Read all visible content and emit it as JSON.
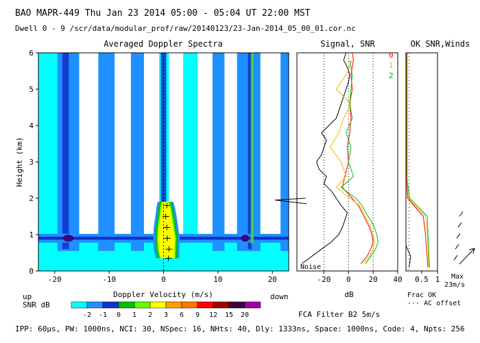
{
  "header": {
    "line1": "BAO  MAPR-449  Thu Jan 23 2014 05:00 - 05:04 UT 22:00 MST",
    "line2": "Dwell  0 -  9   /scr/data/modular_prof/raw/20140123/23-Jan-2014_05_00_01.cor.nc"
  },
  "footer": {
    "params": "IPP:  60µs,  PW: 1000ns,  NCI:  30,  NSpec: 16, NHts: 40,  Dly: 1333ns,  Space: 1000ns,  Code: 4,  Npts: 256"
  },
  "colors": {
    "scale": [
      "#00ffff",
      "#2a8cff",
      "#1030d8",
      "#00c000",
      "#60ff00",
      "#ffff00",
      "#ffa000",
      "#ff7800",
      "#ff0000",
      "#a00000",
      "#400040",
      "#a000a0"
    ],
    "spectra_bg": "#00ffff",
    "spectra_white": "#ffffff",
    "spectra_band": "#1e90ff",
    "spectra_dark": "#1030c8",
    "signal_line": "#000000",
    "snr0": "#ff0000",
    "snr1": "#ffb000",
    "snr2": "#00c000"
  },
  "chart_data": [
    {
      "type": "heatmap",
      "title": "Averaged Doppler Spectra",
      "xlabel": "Doppler Velocity (m/s)",
      "ylabel": "Height (km)",
      "xlim": [
        -23,
        23
      ],
      "ylim": [
        0,
        6
      ],
      "xticks": [
        -20,
        -10,
        0,
        10,
        20
      ],
      "yticks": [
        0,
        1,
        2,
        3,
        4,
        5,
        6
      ],
      "left_note": "up",
      "right_note": "down",
      "colorbar_label": "SNR dB",
      "colorbar_ticks": [
        "-2",
        "-1",
        "0",
        "1",
        "2",
        "3",
        "6",
        "9",
        "12",
        "15",
        "20"
      ],
      "white_bands_x": [
        [
          -15.5,
          -12.0
        ],
        [
          -9.0,
          -6.0
        ],
        [
          -3.6,
          -0.8
        ],
        [
          1.0,
          3.6
        ],
        [
          6.3,
          9.0
        ],
        [
          11.2,
          13.5
        ],
        [
          17.8,
          21.5
        ]
      ],
      "blue_bands_x": [
        [
          -19.5,
          -15.5
        ],
        [
          -12.0,
          -9.0
        ],
        [
          -6.0,
          -3.6
        ],
        [
          9.0,
          11.2
        ],
        [
          13.5,
          17.8
        ],
        [
          21.5,
          23.0
        ]
      ],
      "dark_bands_x": [
        [
          -18.6,
          -17.4
        ],
        [
          15.5,
          16.2
        ],
        [
          -0.5,
          0.5
        ]
      ],
      "ground_clutter": {
        "y": 0.9,
        "half_height": 0.12
      },
      "echo_profile": [
        {
          "h": 0.35,
          "vmin": -0.5,
          "vmax": 2.0
        },
        {
          "h": 0.6,
          "vmin": -0.9,
          "vmax": 2.0
        },
        {
          "h": 0.9,
          "vmin": -1.0,
          "vmax": 2.1
        },
        {
          "h": 1.2,
          "vmin": -0.9,
          "vmax": 1.8
        },
        {
          "h": 1.5,
          "vmin": -0.6,
          "vmax": 1.5
        },
        {
          "h": 1.75,
          "vmin": -0.4,
          "vmax": 1.2
        },
        {
          "h": 1.9,
          "vmin": -0.2,
          "vmax": 0.9
        }
      ],
      "vertical_lines": [
        {
          "v": 16.3,
          "h0": 0.75,
          "h1": 6.0,
          "color": "#40d040"
        }
      ],
      "mean_velocity": [
        {
          "h": 0.35,
          "v": 0.9
        },
        {
          "h": 0.6,
          "v": 1.0
        },
        {
          "h": 0.9,
          "v": 0.7
        },
        {
          "h": 1.2,
          "v": 0.6
        },
        {
          "h": 1.5,
          "v": 0.4
        },
        {
          "h": 1.8,
          "v": 0.6
        }
      ]
    },
    {
      "type": "line",
      "title": "Signal, SNR",
      "xlabel": "dB",
      "xlim": [
        -42,
        40
      ],
      "ylim": [
        0,
        6
      ],
      "xticks": [
        -20,
        0,
        20,
        40
      ],
      "noise_label": "Noise",
      "legend": [
        "0",
        "1",
        "2"
      ],
      "series": [
        {
          "name": "signal",
          "h": [
            0.2,
            0.4,
            0.6,
            0.8,
            1.0,
            1.2,
            1.4,
            1.6,
            1.8,
            2.0,
            2.2,
            2.4,
            2.6,
            2.8,
            3.0,
            3.2,
            3.4,
            3.6,
            3.8,
            4.0,
            4.2,
            4.4,
            4.6,
            4.8,
            5.0,
            5.2,
            5.4,
            5.6,
            5.8,
            6.0
          ],
          "v": [
            -38,
            -30,
            -22,
            -14,
            -8,
            -5,
            -3,
            -1,
            -6,
            -10,
            -14,
            -20,
            -18,
            -24,
            -26,
            -22,
            -20,
            -18,
            -22,
            -16,
            -10,
            -8,
            -6,
            -4,
            -2,
            0,
            1,
            -1,
            -4,
            -2
          ]
        },
        {
          "name": "0",
          "h": [
            0.2,
            0.4,
            0.6,
            0.8,
            1.0,
            1.2,
            1.4,
            1.6,
            1.8,
            2.0,
            2.3,
            2.6,
            3.0,
            3.4,
            3.8,
            4.2,
            4.6,
            5.0,
            5.4,
            5.8,
            6.0
          ],
          "v": [
            10,
            15,
            18,
            20,
            19,
            17,
            14,
            11,
            8,
            3,
            -5,
            -3,
            0,
            -1,
            1,
            2,
            1,
            3,
            2,
            4,
            3
          ]
        },
        {
          "name": "1",
          "h": [
            0.2,
            0.4,
            0.6,
            0.8,
            1.0,
            1.2,
            1.4,
            1.6,
            1.8,
            2.3,
            2.6,
            3.0,
            3.4,
            3.8,
            4.2,
            4.6,
            5.0,
            5.4,
            5.8
          ],
          "v": [
            12,
            17,
            20,
            21,
            20,
            18,
            15,
            12,
            9,
            -10,
            -2,
            -6,
            -15,
            -8,
            -4,
            2,
            -10,
            -2,
            3
          ]
        },
        {
          "name": "2",
          "h": [
            0.2,
            0.4,
            0.6,
            0.8,
            1.0,
            1.2,
            1.4,
            1.6,
            1.8,
            2.0,
            2.3,
            2.6,
            3.0,
            3.4,
            3.8,
            4.2,
            4.6,
            5.0,
            5.4,
            5.8
          ],
          "v": [
            14,
            18,
            22,
            24,
            23,
            21,
            18,
            14,
            11,
            6,
            -6,
            4,
            0,
            2,
            -2,
            3,
            1,
            2,
            3,
            1
          ]
        }
      ]
    },
    {
      "type": "line",
      "title": "OK SNR,Winds",
      "xlabel": "Frac OK",
      "xlim": [
        0,
        1
      ],
      "ylim": [
        0,
        6
      ],
      "xticks": [
        0.5,
        1
      ],
      "note": "··· AC offset",
      "max_label": "Max\n23m/s",
      "filter_label": "FCA Filter B2  5m/s",
      "series": [
        {
          "name": "signal",
          "h": [
            0.1,
            0.4,
            0.7,
            1.0,
            2.0,
            4.0,
            6.0
          ],
          "v": [
            0.1,
            0.15,
            0.0,
            0.0,
            0.0,
            0.0,
            0.0
          ]
        },
        {
          "name": "0",
          "h": [
            0.1,
            0.6,
            1.0,
            1.5,
            2.0,
            2.5,
            6.0
          ],
          "v": [
            0.7,
            0.65,
            0.62,
            0.55,
            0.05,
            0.02,
            0.02
          ]
        },
        {
          "name": "1",
          "h": [
            0.1,
            0.6,
            1.0,
            1.5,
            2.0,
            2.5,
            6.0
          ],
          "v": [
            0.72,
            0.7,
            0.68,
            0.62,
            0.08,
            0.03,
            0.03
          ]
        },
        {
          "name": "2",
          "h": [
            0.1,
            0.6,
            1.0,
            1.5,
            2.0,
            2.5,
            6.0
          ],
          "v": [
            0.75,
            0.72,
            0.7,
            0.68,
            0.12,
            0.04,
            0.04
          ]
        }
      ],
      "wind_heights": [
        0.3,
        0.6,
        0.9,
        1.2,
        1.5
      ]
    }
  ]
}
